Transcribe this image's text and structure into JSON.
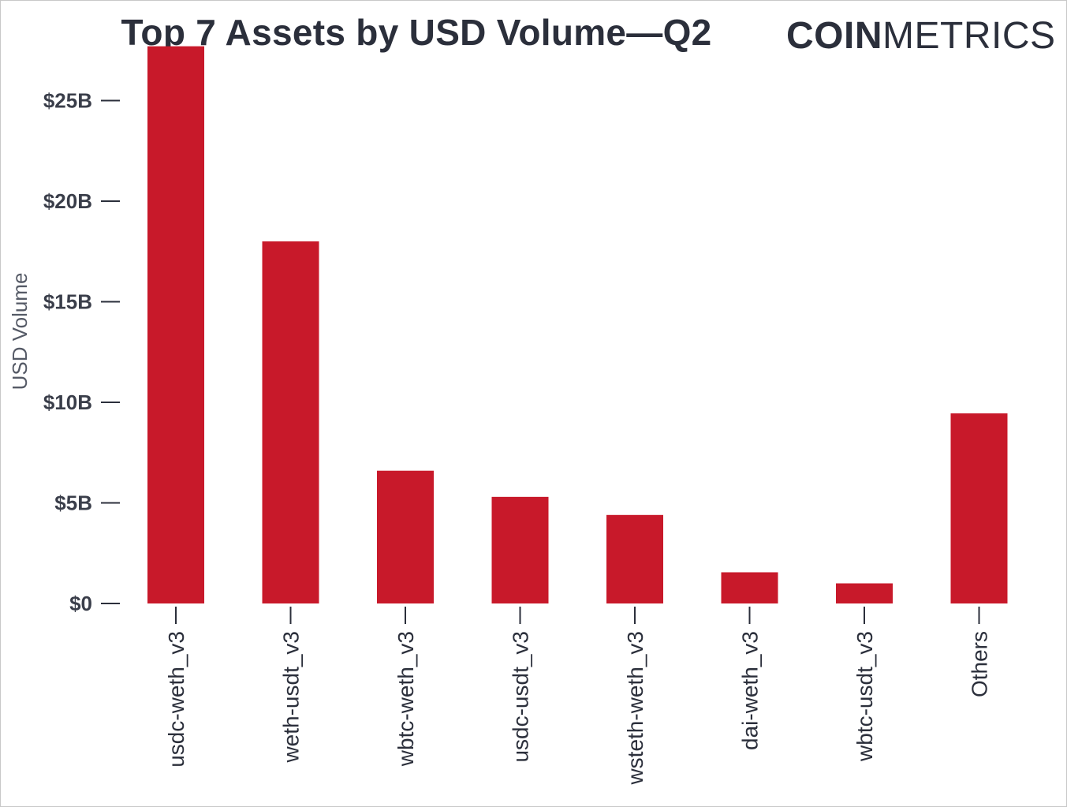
{
  "header": {
    "title": "Top 7 Assets by USD Volume—Q2",
    "brand_bold": "COIN",
    "brand_light": "METRICS"
  },
  "chart_data": {
    "type": "bar",
    "title": "Top 7 Assets by USD Volume—Q2",
    "xlabel": "",
    "ylabel": "USD Volume",
    "categories": [
      "usdc-weth_v3",
      "weth-usdt_v3",
      "wbtc-weth_v3",
      "usdc-usdt_v3",
      "wsteth-weth_v3",
      "dai-weth_v3",
      "wbtc-usdt_v3",
      "Others"
    ],
    "values": [
      27.7,
      18.0,
      6.6,
      5.3,
      4.4,
      1.55,
      1.0,
      9.45
    ],
    "value_unit": "B USD",
    "ylim": [
      0,
      28
    ],
    "y_ticks": [
      0,
      5,
      10,
      15,
      20,
      25
    ],
    "y_tick_labels": [
      "$0",
      "$5B",
      "$10B",
      "$15B",
      "$20B",
      "$25B"
    ],
    "bar_color": "#c8192a",
    "grid": false,
    "legend": "none"
  }
}
